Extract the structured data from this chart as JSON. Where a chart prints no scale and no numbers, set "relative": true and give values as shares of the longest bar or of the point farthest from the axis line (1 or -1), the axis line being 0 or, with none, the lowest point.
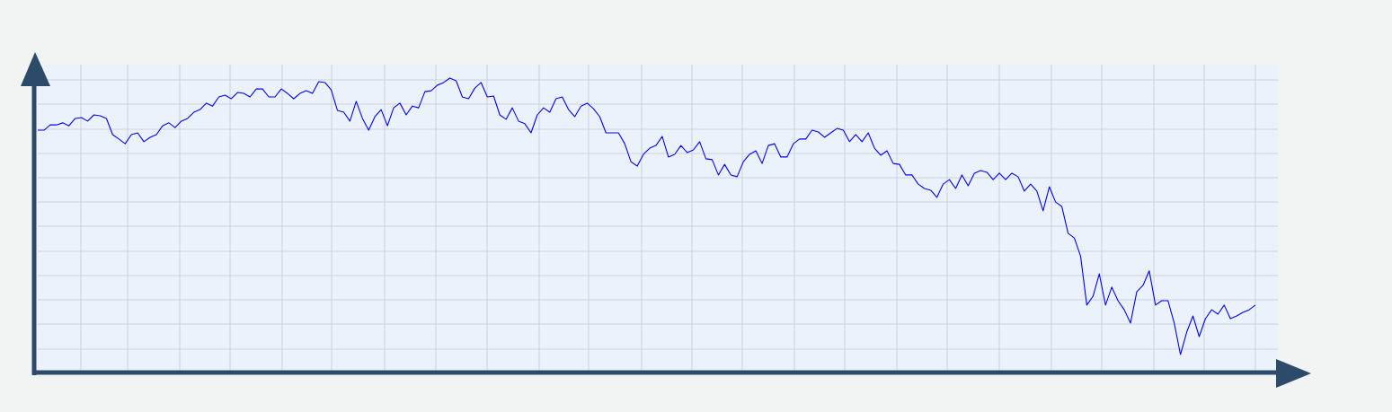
{
  "chart_data": {
    "type": "line",
    "relative": true,
    "grid": true,
    "color": "#0000ff",
    "categories": [
      null,
      null,
      null,
      null,
      null,
      null,
      null,
      null,
      null,
      null,
      null,
      null,
      null,
      null,
      null,
      null,
      null,
      null,
      null,
      null,
      null,
      null,
      null,
      null,
      null,
      null,
      null,
      null,
      null,
      null,
      null,
      null,
      null,
      null,
      null,
      null,
      null,
      null,
      null,
      null,
      null,
      null,
      null,
      null,
      null,
      null,
      null,
      null,
      null,
      null,
      null,
      null,
      null,
      null,
      null,
      null,
      null,
      null,
      null,
      null,
      null,
      null,
      null,
      null,
      null,
      null,
      null,
      null,
      null,
      null,
      null,
      null,
      null,
      null,
      null,
      null,
      null,
      null,
      null,
      null,
      null,
      null,
      null,
      null,
      null,
      null,
      null,
      null,
      null,
      null,
      null,
      null,
      null,
      null,
      null,
      null,
      null,
      null,
      null,
      null,
      null,
      null,
      null,
      null,
      null,
      null,
      null,
      null,
      null,
      null,
      null,
      null,
      null,
      null,
      null,
      null,
      null,
      null,
      null,
      null,
      null,
      null,
      null,
      null,
      null,
      null,
      null,
      null,
      null,
      null,
      null,
      null,
      null,
      null,
      null,
      null,
      null,
      null,
      null,
      null,
      null,
      null,
      null,
      null,
      null,
      null,
      null,
      null,
      null,
      null,
      null,
      null,
      null,
      null,
      null,
      null,
      null,
      null,
      null,
      null,
      null,
      null,
      null,
      null,
      null,
      null,
      null,
      null,
      null,
      null,
      null,
      null,
      null,
      null,
      null,
      null,
      null,
      null,
      null,
      null,
      null,
      null,
      null,
      null,
      null,
      null,
      null,
      null,
      null,
      null,
      null,
      null,
      null,
      null,
      null,
      null
    ],
    "values": [
      0.823,
      0.823,
      0.841,
      0.841,
      0.848,
      0.838,
      0.863,
      0.866,
      0.854,
      0.875,
      0.872,
      0.863,
      0.808,
      0.793,
      0.777,
      0.808,
      0.814,
      0.784,
      0.799,
      0.808,
      0.838,
      0.848,
      0.832,
      0.854,
      0.863,
      0.884,
      0.893,
      0.915,
      0.905,
      0.936,
      0.942,
      0.93,
      0.951,
      0.948,
      0.936,
      0.963,
      0.963,
      0.936,
      0.936,
      0.963,
      0.948,
      0.93,
      0.948,
      0.957,
      0.948,
      0.988,
      0.985,
      0.96,
      0.89,
      0.884,
      0.854,
      0.921,
      0.863,
      0.823,
      0.869,
      0.893,
      0.838,
      0.899,
      0.915,
      0.875,
      0.905,
      0.899,
      0.954,
      0.957,
      0.976,
      0.985,
      1,
      0.991,
      0.936,
      0.93,
      0.966,
      0.985,
      0.936,
      0.939,
      0.875,
      0.86,
      0.899,
      0.854,
      0.845,
      0.814,
      0.875,
      0.899,
      0.884,
      0.93,
      0.936,
      0.893,
      0.869,
      0.905,
      0.915,
      0.896,
      0.869,
      0.814,
      0.814,
      0.814,
      0.777,
      0.716,
      0.701,
      0.741,
      0.762,
      0.771,
      0.802,
      0.732,
      0.741,
      0.771,
      0.747,
      0.756,
      0.784,
      0.726,
      0.723,
      0.671,
      0.707,
      0.671,
      0.665,
      0.716,
      0.741,
      0.753,
      0.71,
      0.771,
      0.777,
      0.732,
      0.732,
      0.777,
      0.793,
      0.793,
      0.823,
      0.817,
      0.799,
      0.814,
      0.829,
      0.823,
      0.784,
      0.808,
      0.784,
      0.814,
      0.762,
      0.738,
      0.753,
      0.71,
      0.707,
      0.671,
      0.671,
      0.64,
      0.625,
      0.619,
      0.595,
      0.64,
      0.655,
      0.625,
      0.671,
      0.634,
      0.677,
      0.686,
      0.68,
      0.655,
      0.677,
      0.655,
      0.677,
      0.665,
      0.616,
      0.64,
      0.616,
      0.549,
      0.631,
      0.579,
      0.564,
      0.473,
      0.457,
      0.396,
      0.229,
      0.259,
      0.335,
      0.229,
      0.29,
      0.244,
      0.213,
      0.168,
      0.274,
      0.296,
      0.345,
      0.229,
      0.244,
      0.244,
      0.168,
      0.061,
      0.137,
      0.192,
      0.122,
      0.183,
      0.213,
      0.198,
      0.229,
      0.183,
      0.192,
      0.204,
      0.213,
      0.229
    ]
  }
}
